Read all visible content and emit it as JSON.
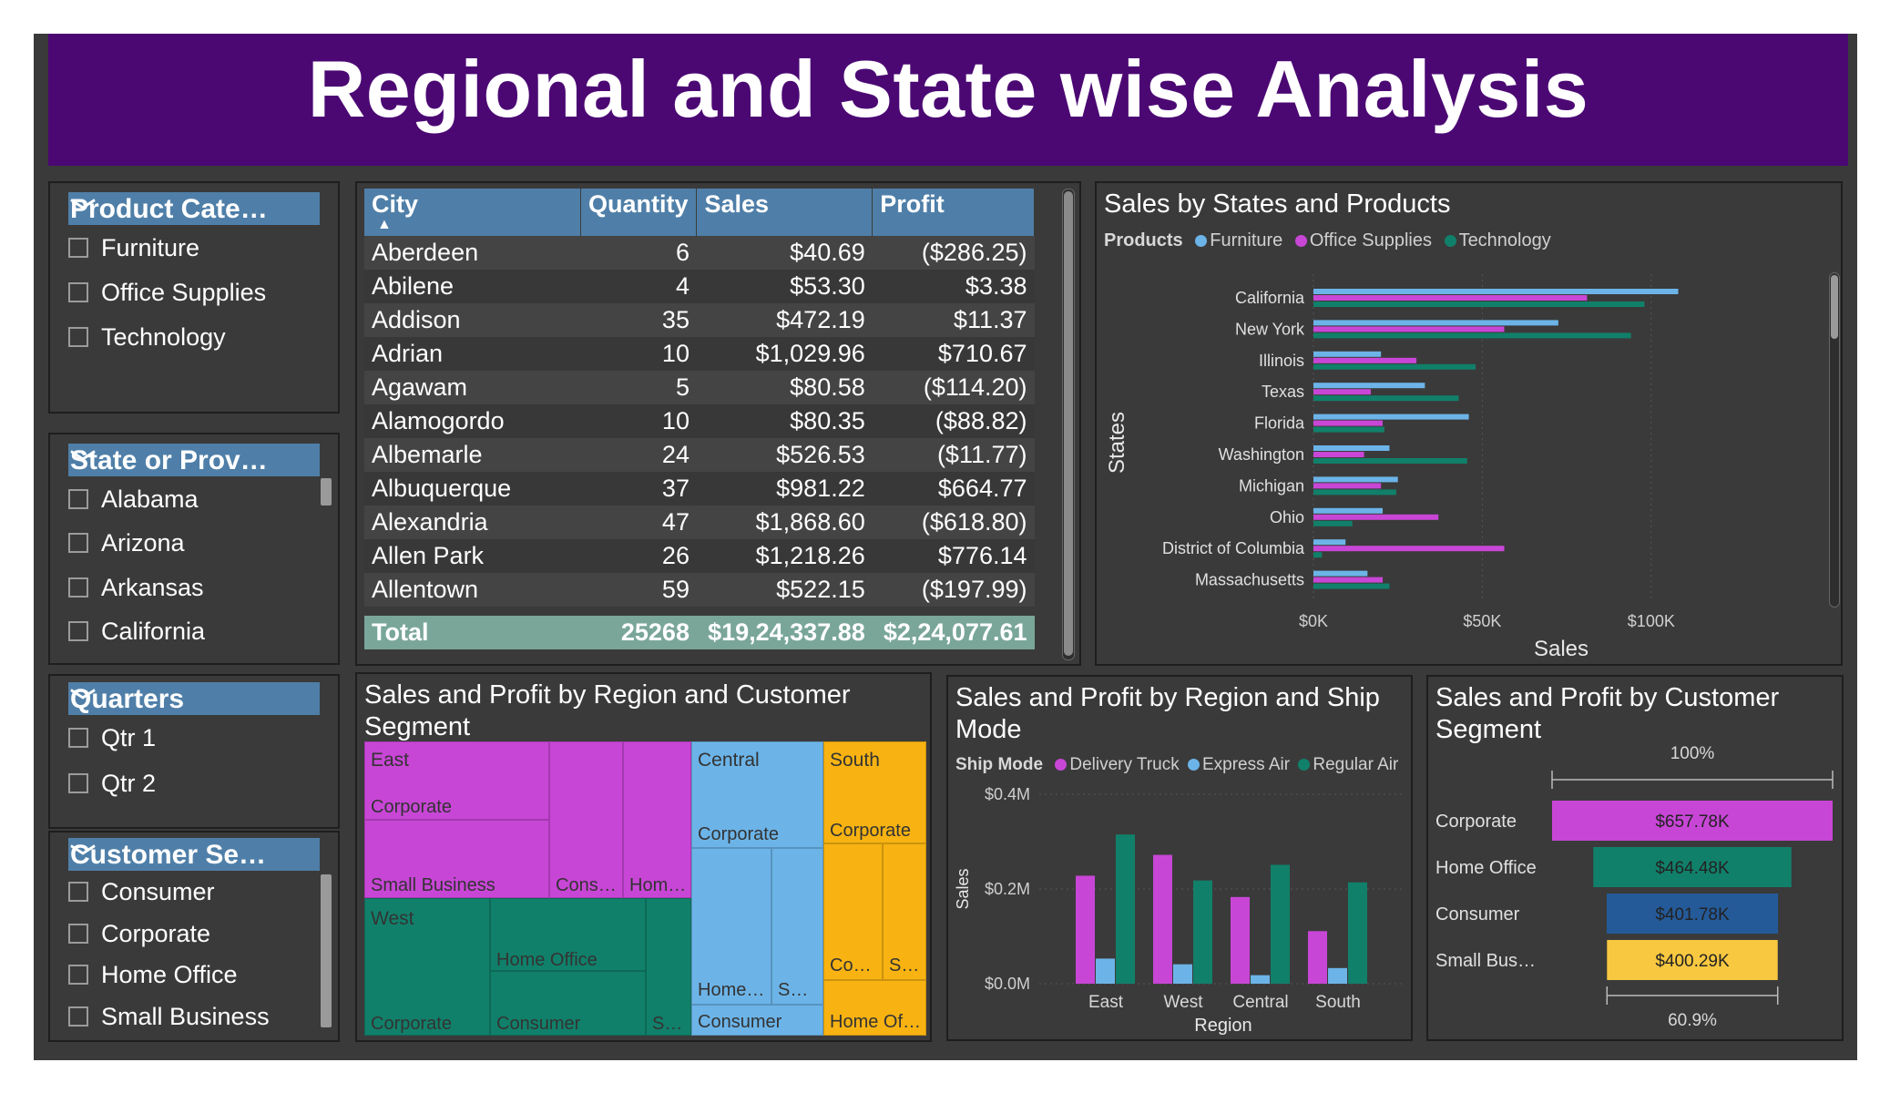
{
  "title": "Regional and State wise Analysis",
  "slicers": [
    {
      "header": "Product Cate…",
      "options": [
        "Furniture",
        "Office Supplies",
        "Technology"
      ]
    },
    {
      "header": "State or Prov…",
      "options": [
        "Alabama",
        "Arizona",
        "Arkansas",
        "California"
      ]
    },
    {
      "header": "Quarters",
      "options": [
        "Qtr 1",
        "Qtr 2"
      ]
    },
    {
      "header": "Customer Se…",
      "options": [
        "Consumer",
        "Corporate",
        "Home Office",
        "Small Business"
      ]
    }
  ],
  "table": {
    "columns": [
      "City",
      "Quantity",
      "Sales",
      "Profit"
    ],
    "rows": [
      [
        "Aberdeen",
        "6",
        "$40.69",
        "($286.25)"
      ],
      [
        "Abilene",
        "4",
        "$53.30",
        "$3.38"
      ],
      [
        "Addison",
        "35",
        "$472.19",
        "$11.37"
      ],
      [
        "Adrian",
        "10",
        "$1,029.96",
        "$710.67"
      ],
      [
        "Agawam",
        "5",
        "$80.58",
        "($114.20)"
      ],
      [
        "Alamogordo",
        "10",
        "$80.35",
        "($88.82)"
      ],
      [
        "Albemarle",
        "24",
        "$526.53",
        "($11.77)"
      ],
      [
        "Albuquerque",
        "37",
        "$981.22",
        "$664.77"
      ],
      [
        "Alexandria",
        "47",
        "$1,868.60",
        "($618.80)"
      ],
      [
        "Allen Park",
        "26",
        "$1,218.26",
        "$776.14"
      ],
      [
        "Allentown",
        "59",
        "$522.15",
        "($197.99)"
      ]
    ],
    "total": [
      "Total",
      "25268",
      "$19,24,337.88",
      "$2,24,077.61"
    ]
  },
  "states_chart": {
    "title": "Sales by States and Products",
    "legend_title": "Products",
    "xlabel": "Sales",
    "ylabel": "States",
    "x_ticks": [
      "$0K",
      "$50K",
      "$100K"
    ],
    "colors": {
      "Furniture": "#6cb4e8",
      "Office Supplies": "#c846d6",
      "Technology": "#11806a"
    }
  },
  "treemap": {
    "title": "Sales and Profit by Region and Customer Segment",
    "labels": {
      "east": "East",
      "east_corp": "Corporate",
      "east_sb": "Small Business",
      "east_cons": "Cons…",
      "east_hom": "Hom…",
      "west": "West",
      "west_corp": "Corporate",
      "west_ho": "Home Office",
      "west_cons": "Consumer",
      "west_s": "S…",
      "central": "Central",
      "central_corp": "Corporate",
      "central_home": "Home…",
      "central_s": "S…",
      "central_cons": "Consumer",
      "south": "South",
      "south_corp": "Corporate",
      "south_co": "Co…",
      "south_s": "S…",
      "south_ho": "Home Of…"
    },
    "colors": {
      "east": "#c846d6",
      "west": "#11806a",
      "central": "#6cb4e8",
      "south": "#f8b312"
    }
  },
  "ship_chart": {
    "title": "Sales and Profit by Region and Ship Mode",
    "legend_title": "Ship Mode",
    "xlabel": "Region",
    "ylabel": "Sales",
    "y_ticks": [
      "$0.0M",
      "$0.2M",
      "$0.4M"
    ],
    "colors": {
      "Delivery Truck": "#c846d6",
      "Express Air": "#6cb4e8",
      "Regular Air": "#11806a"
    }
  },
  "segment_chart": {
    "title": "Sales and Profit by Customer Segment",
    "top_label": "100%",
    "bottom_label": "60.9%",
    "colors": [
      "#c846d6",
      "#11806a",
      "#255a99",
      "#f8c840"
    ]
  },
  "chart_data": [
    {
      "type": "bar",
      "title": "Sales by States and Products",
      "xlabel": "Sales",
      "ylabel": "States",
      "xlim": [
        0,
        120000
      ],
      "categories": [
        "California",
        "New York",
        "Illinois",
        "Texas",
        "Florida",
        "Washington",
        "Michigan",
        "Ohio",
        "District of Columbia",
        "Massachusetts"
      ],
      "series": [
        {
          "name": "Furniture",
          "values": [
            108000,
            72500,
            20000,
            33000,
            46000,
            22500,
            25000,
            20500,
            9500,
            16000
          ]
        },
        {
          "name": "Office Supplies",
          "values": [
            81000,
            56500,
            30500,
            17000,
            20500,
            15000,
            20000,
            37000,
            56500,
            20500
          ]
        },
        {
          "name": "Technology",
          "values": [
            98000,
            94000,
            48000,
            43000,
            21000,
            45500,
            24500,
            11500,
            2500,
            22500
          ]
        }
      ],
      "legend": "top-left"
    },
    {
      "type": "bar",
      "title": "Sales and Profit by Region and Ship Mode",
      "xlabel": "Region",
      "ylabel": "Sales",
      "ylim": [
        0,
        400000
      ],
      "categories": [
        "East",
        "West",
        "Central",
        "South"
      ],
      "series": [
        {
          "name": "Delivery Truck",
          "values": [
            228000,
            272000,
            183000,
            111000
          ]
        },
        {
          "name": "Express Air",
          "values": [
            53000,
            41000,
            18000,
            33000
          ]
        },
        {
          "name": "Regular Air",
          "values": [
            315000,
            218000,
            251000,
            214000
          ]
        }
      ],
      "legend": "top-left"
    },
    {
      "type": "bar",
      "title": "Sales and Profit by Customer Segment",
      "categories": [
        "Corporate",
        "Home Office",
        "Consumer",
        "Small Bus…"
      ],
      "values": [
        657780,
        464480,
        401780,
        400290
      ],
      "value_labels": [
        "$657.78K",
        "$464.48K",
        "$401.78K",
        "$400.29K"
      ],
      "top_label": "100%",
      "bottom_label": "60.9%"
    },
    {
      "type": "heatmap",
      "title": "Sales and Profit by Region and Customer Segment",
      "categories": [
        "East",
        "West",
        "Central",
        "South"
      ]
    }
  ]
}
